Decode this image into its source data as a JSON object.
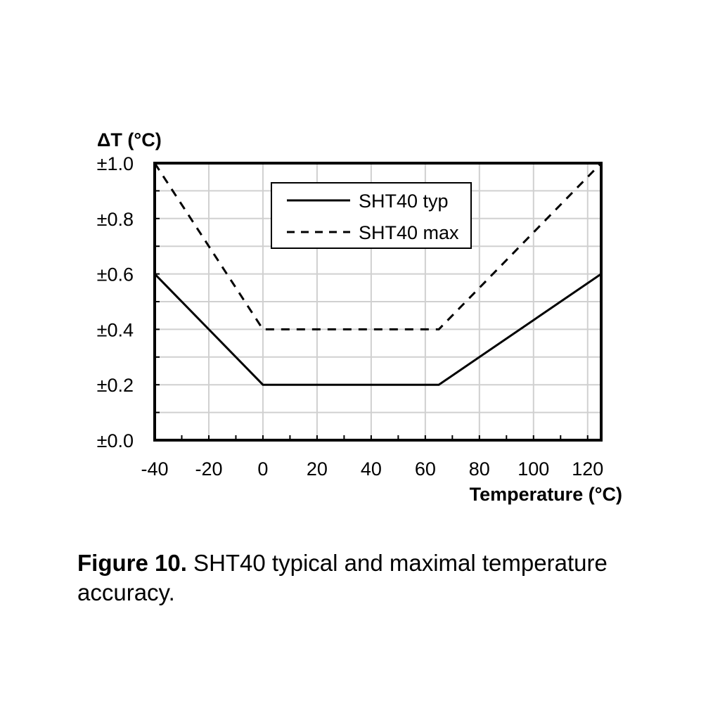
{
  "chart_data": {
    "type": "line",
    "xlabel": "Temperature (°C)",
    "ylabel": "ΔT (°C)",
    "xlim": [
      -40,
      125
    ],
    "ylim": [
      0.0,
      1.0
    ],
    "x_ticks": [
      -40,
      -20,
      0,
      20,
      40,
      60,
      80,
      100,
      120
    ],
    "x_tick_labels": [
      "-40",
      "-20",
      "0",
      "20",
      "40",
      "60",
      "80",
      "100",
      "120"
    ],
    "y_ticks": [
      0.0,
      0.2,
      0.4,
      0.6,
      0.8,
      1.0
    ],
    "y_tick_labels": [
      "±0.0",
      "±0.2",
      "±0.4",
      "±0.6",
      "±0.8",
      "±1.0"
    ],
    "grid": true,
    "legend": "top-center",
    "series": [
      {
        "name": "SHT40 typ",
        "style": "solid",
        "color": "#000000",
        "x": [
          -40,
          0,
          65,
          125
        ],
        "y": [
          0.6,
          0.2,
          0.2,
          0.6
        ]
      },
      {
        "name": "SHT40 max",
        "style": "dashed",
        "color": "#000000",
        "x": [
          -40,
          0,
          65,
          125
        ],
        "y": [
          1.0,
          0.4,
          0.4,
          1.0
        ]
      }
    ]
  },
  "caption": {
    "lead": "Figure 10.",
    "text": " SHT40 typical and maximal temperature accuracy."
  }
}
